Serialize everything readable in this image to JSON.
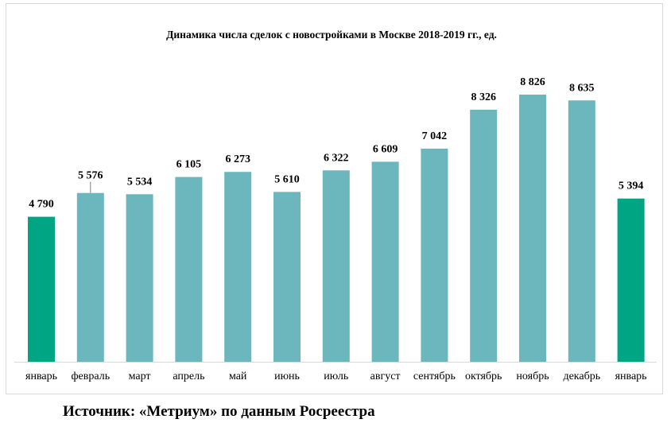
{
  "chart_data": {
    "type": "bar",
    "title": "Динамика числа сделок с новостройками в Москве 2018-2019 гг., ед.",
    "categories": [
      "январь",
      "февраль",
      "март",
      "апрель",
      "май",
      "июнь",
      "июль",
      "август",
      "сентябрь",
      "октябрь",
      "ноябрь",
      "декабрь",
      "январь"
    ],
    "values": [
      4790,
      5576,
      5534,
      6105,
      6273,
      5610,
      6322,
      6609,
      7042,
      8326,
      8826,
      8635,
      5394
    ],
    "value_labels": [
      "4 790",
      "5 576",
      "5 534",
      "6 105",
      "6 273",
      "5 610",
      "6 322",
      "6 609",
      "7 042",
      "8 326",
      "8 826",
      "8 635",
      "5 394"
    ],
    "highlighted": [
      0,
      12
    ],
    "ylim": [
      0,
      8826
    ],
    "grid": false,
    "legend": "none",
    "colors": {
      "bar": "#6cb7bd",
      "highlight": "#00a584",
      "axis": "#d9d9d9"
    }
  },
  "source_text": "Источник: «Метриум» по данным Росреестра"
}
